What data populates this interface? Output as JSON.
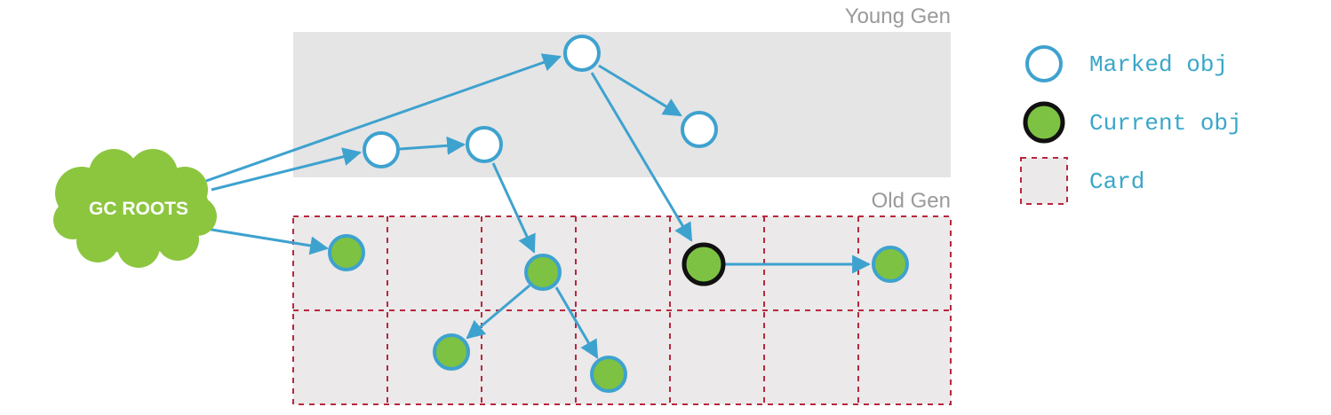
{
  "regions": {
    "young_label": "Young Gen",
    "old_label": "Old Gen"
  },
  "roots": {
    "label": "GC ROOTS"
  },
  "legend": {
    "marked": "Marked obj",
    "current": "Current obj",
    "card": "Card"
  },
  "colors": {
    "arrow": "#3ea2cf",
    "green": "#7dc242",
    "young_fill": "#e5e5e5",
    "card_fill": "#ebe9e9",
    "card_border": "#b7283f",
    "label_gray": "#9a9a9a",
    "legend_text": "#3aa7c9"
  }
}
